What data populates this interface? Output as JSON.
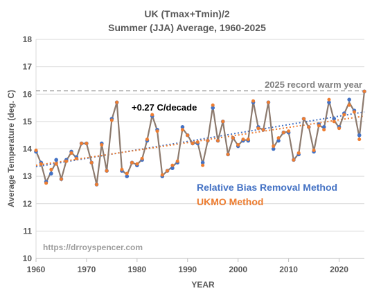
{
  "chart_data": {
    "type": "line",
    "title": "UK (Tmax+Tmin)/2",
    "subtitle": "Summer (JJA) Average, 1960-2025",
    "xlabel": "YEAR",
    "ylabel": "Average Temperature (deg. C)",
    "xlim": [
      1960,
      2025
    ],
    "ylim": [
      10,
      18
    ],
    "xticks": [
      "1960",
      "1970",
      "1980",
      "1990",
      "2000",
      "2010",
      "2020"
    ],
    "yticks": [
      "10",
      "11",
      "12",
      "13",
      "14",
      "15",
      "16",
      "17",
      "18"
    ],
    "grid": "horizontal",
    "x": [
      1960,
      1961,
      1962,
      1963,
      1964,
      1965,
      1966,
      1967,
      1968,
      1969,
      1970,
      1971,
      1972,
      1973,
      1974,
      1975,
      1976,
      1977,
      1978,
      1979,
      1980,
      1981,
      1982,
      1983,
      1984,
      1985,
      1986,
      1987,
      1988,
      1989,
      1990,
      1991,
      1992,
      1993,
      1994,
      1995,
      1996,
      1997,
      1998,
      1999,
      2000,
      2001,
      2002,
      2003,
      2004,
      2005,
      2006,
      2007,
      2008,
      2009,
      2010,
      2011,
      2012,
      2013,
      2014,
      2015,
      2016,
      2017,
      2018,
      2019,
      2020,
      2021,
      2022,
      2023,
      2024,
      2025
    ],
    "series": [
      {
        "name": "Relative Bias Removal Method",
        "color": "#4472c4",
        "values": [
          13.9,
          13.5,
          12.8,
          13.1,
          13.6,
          12.9,
          13.6,
          13.9,
          13.7,
          14.2,
          14.2,
          13.5,
          12.7,
          14.2,
          13.2,
          15.1,
          15.7,
          13.2,
          13.0,
          13.5,
          13.4,
          13.6,
          14.3,
          15.2,
          14.7,
          13.0,
          13.2,
          13.3,
          13.5,
          14.8,
          14.5,
          14.2,
          14.2,
          13.5,
          14.3,
          15.5,
          14.3,
          15.0,
          13.8,
          14.4,
          14.1,
          14.3,
          14.3,
          15.7,
          14.8,
          14.7,
          15.7,
          14.0,
          14.3,
          14.6,
          14.6,
          13.6,
          13.8,
          15.1,
          14.8,
          13.9,
          14.9,
          14.8,
          15.7,
          15.1,
          14.8,
          15.3,
          15.8,
          15.4,
          14.5,
          16.1
        ]
      },
      {
        "name": "UKMO Method",
        "color": "#ed7d31",
        "values": [
          13.95,
          13.45,
          12.75,
          13.25,
          13.45,
          12.9,
          13.55,
          13.85,
          13.65,
          14.2,
          14.2,
          13.5,
          12.7,
          14.15,
          13.2,
          15.05,
          15.7,
          13.25,
          13.1,
          13.5,
          13.45,
          13.65,
          14.35,
          15.25,
          14.65,
          13.05,
          13.2,
          13.4,
          13.55,
          14.7,
          14.5,
          14.2,
          14.25,
          13.4,
          14.3,
          15.6,
          14.3,
          15.0,
          13.8,
          14.4,
          14.15,
          14.35,
          14.35,
          15.75,
          14.75,
          14.7,
          15.7,
          14.1,
          14.4,
          14.6,
          14.65,
          13.6,
          13.85,
          15.1,
          14.8,
          13.95,
          14.85,
          14.7,
          15.8,
          15.0,
          14.75,
          15.25,
          15.6,
          15.35,
          14.35,
          16.1
        ]
      }
    ],
    "trendlines": [
      {
        "series": "Relative Bias Removal Method",
        "start": [
          1960,
          13.35
        ],
        "end": [
          2025,
          15.35
        ]
      },
      {
        "series": "UKMO Method",
        "start": [
          1960,
          13.4
        ],
        "end": [
          2025,
          15.2
        ]
      }
    ],
    "reference_line": {
      "y": 16.12,
      "label": "2025 record warm year",
      "color": "#8a8a8a"
    },
    "trend_label": "+0.27 C/decade",
    "url": "https://drroyspencer.com",
    "legend_position": "lower-right"
  }
}
